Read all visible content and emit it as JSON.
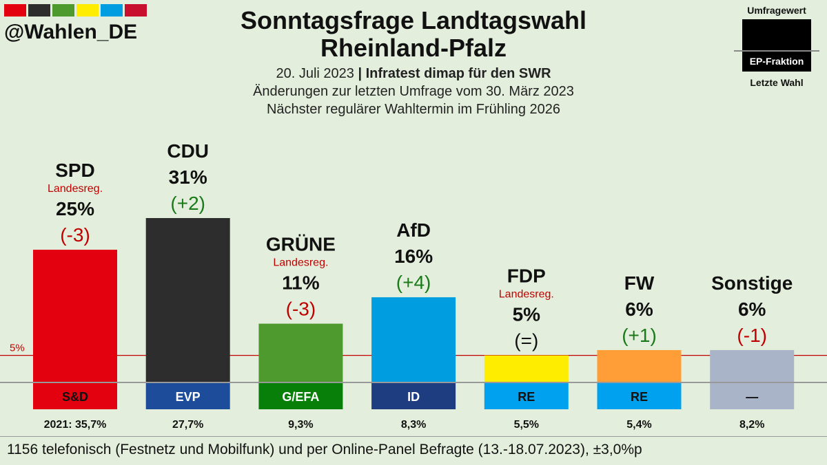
{
  "header": {
    "handle": "@Wahlen_DE",
    "title_line1": "Sonntagsfrage Landtagswahl",
    "title_line2": "Rheinland-Pfalz",
    "date": "20. Juli 2023",
    "separator": "|",
    "institute": "Infratest dimap für den SWR",
    "changes_note": "Änderungen zur letzten Umfrage vom 30. März 2023",
    "next_election": "Nächster regulärer Wahltermin im Frühling 2026",
    "stripe_colors": [
      "#e3000f",
      "#2d2d2d",
      "#4e9a2e",
      "#ffed00",
      "#009ee0",
      "#c8102e"
    ]
  },
  "legend": {
    "top_label": "Umfragewert",
    "middle_label": "EP-Fraktion",
    "bottom_label": "Letzte Wahl"
  },
  "footer": {
    "text": "1156 telefonisch (Festnetz und Mobilfunk) und per Online-Panel Befragte (13.-18.07.2023), ±3,0%p"
  },
  "chart_data": {
    "type": "bar",
    "title": "Sonntagsfrage Landtagswahl Rheinland-Pfalz",
    "threshold": {
      "label": "5%",
      "value": 5
    },
    "ylim": [
      0,
      31
    ],
    "categories": [
      "SPD",
      "CDU",
      "GRÜNE",
      "AfD",
      "FDP",
      "FW",
      "Sonstige"
    ],
    "series": [
      {
        "name": "Umfragewert",
        "values": [
          25,
          31,
          11,
          16,
          5,
          6,
          6
        ],
        "value_labels": [
          "25%",
          "31%",
          "11%",
          "16%",
          "5%",
          "6%",
          "6%"
        ]
      }
    ],
    "changes": [
      "(-3)",
      "(+2)",
      "(-3)",
      "(+4)",
      "(=)",
      "(+1)",
      "(-1)"
    ],
    "change_colors": [
      "#c00000",
      "#1a7a1a",
      "#c00000",
      "#1a7a1a",
      "#111111",
      "#1a7a1a",
      "#c00000"
    ],
    "government_tag": [
      "Landesreg.",
      "",
      "Landesreg.",
      "",
      "Landesreg.",
      "",
      ""
    ],
    "bar_colors": [
      "#e3000f",
      "#2d2d2d",
      "#4e9a2e",
      "#009ee0",
      "#ffed00",
      "#ff9e37",
      "#aab4c8"
    ],
    "ep_groups": [
      "S&D",
      "EVP",
      "G/EFA",
      "ID",
      "RE",
      "RE",
      "—"
    ],
    "ep_colors": [
      "#e3000f",
      "#1c4c9a",
      "#087f08",
      "#1e3d80",
      "#00a2f0",
      "#00a2f0",
      "#aab4c8"
    ],
    "ep_text_colors": [
      "#111111",
      "#ffffff",
      "#ffffff",
      "#ffffff",
      "#111111",
      "#111111",
      "#111111"
    ],
    "last_election": [
      "2021: 35,7%",
      "27,7%",
      "9,3%",
      "8,3%",
      "5,5%",
      "5,4%",
      "8,2%"
    ]
  },
  "colors": {
    "background": "#e3efdc",
    "threshold_line": "#c00000",
    "baseline": "#999999",
    "government_tag": "#c00000"
  }
}
